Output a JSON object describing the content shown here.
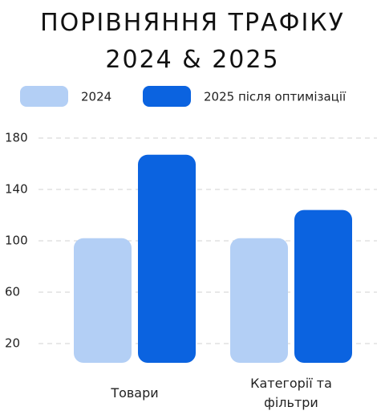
{
  "chart_data": {
    "type": "bar",
    "title": "ПОРІВНЯННЯ ТРАФІКУ 2024 & 2025",
    "categories": [
      "Товари",
      "Категорії та фільтри"
    ],
    "series": [
      {
        "name": "2024",
        "color": "#b3cff5",
        "values": [
          102,
          102
        ]
      },
      {
        "name": "2025 після оптимізації",
        "color": "#0b63e0",
        "values": [
          167,
          124
        ]
      }
    ],
    "ylim": [
      5,
      180
    ],
    "yticks": [
      20,
      60,
      100,
      140,
      180
    ],
    "grid": true,
    "legend": "top"
  }
}
